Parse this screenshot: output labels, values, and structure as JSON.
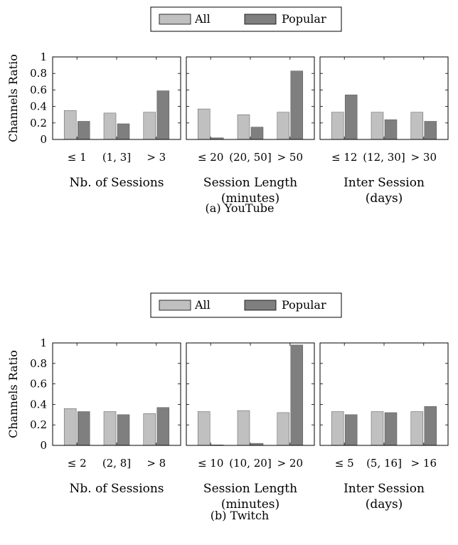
{
  "legend_labels": [
    "All",
    "Popular"
  ],
  "colors": {
    "all": "#c0c0c0",
    "popular": "#7f7f7f",
    "axis": "#000000"
  },
  "chart_data": [
    {
      "type": "bar",
      "caption": "(a) YouTube",
      "ylabel": "Channels Ratio",
      "ylim": [
        0,
        1
      ],
      "yticks": [
        "0",
        "0.2",
        "0.4",
        "0.6",
        "0.8",
        "1"
      ],
      "legend": [
        "All",
        "Popular"
      ],
      "legend_position": "top-center",
      "panels": [
        {
          "xlabel": [
            "Nb. of Sessions"
          ],
          "categories": [
            "≤ 1",
            "(1, 3]",
            "> 3"
          ],
          "series": [
            {
              "name": "All",
              "values": [
                0.35,
                0.32,
                0.33
              ]
            },
            {
              "name": "Popular",
              "values": [
                0.22,
                0.19,
                0.59
              ]
            }
          ]
        },
        {
          "xlabel": [
            "Session Length",
            "(minutes)"
          ],
          "categories": [
            "≤ 20",
            "(20, 50]",
            "> 50"
          ],
          "series": [
            {
              "name": "All",
              "values": [
                0.37,
                0.3,
                0.33
              ]
            },
            {
              "name": "Popular",
              "values": [
                0.02,
                0.15,
                0.83
              ]
            }
          ]
        },
        {
          "xlabel": [
            "Inter Session",
            "(days)"
          ],
          "categories": [
            "≤ 12",
            "(12, 30]",
            "> 30"
          ],
          "series": [
            {
              "name": "All",
              "values": [
                0.33,
                0.33,
                0.33
              ]
            },
            {
              "name": "Popular",
              "values": [
                0.54,
                0.24,
                0.22
              ]
            }
          ]
        }
      ]
    },
    {
      "type": "bar",
      "caption": "(b) Twitch",
      "ylabel": "Channels Ratio",
      "ylim": [
        0,
        1
      ],
      "yticks": [
        "0",
        "0.2",
        "0.4",
        "0.6",
        "0.8",
        "1"
      ],
      "legend": [
        "All",
        "Popular"
      ],
      "legend_position": "top-center",
      "panels": [
        {
          "xlabel": [
            "Nb. of Sessions"
          ],
          "categories": [
            "≤ 2",
            "(2, 8]",
            "> 8"
          ],
          "series": [
            {
              "name": "All",
              "values": [
                0.36,
                0.33,
                0.31
              ]
            },
            {
              "name": "Popular",
              "values": [
                0.33,
                0.3,
                0.37
              ]
            }
          ]
        },
        {
          "xlabel": [
            "Session Length",
            "(minutes)"
          ],
          "categories": [
            "≤ 10",
            "(10, 20]",
            "> 20"
          ],
          "series": [
            {
              "name": "All",
              "values": [
                0.33,
                0.34,
                0.32
              ]
            },
            {
              "name": "Popular",
              "values": [
                0.005,
                0.02,
                0.98
              ]
            }
          ]
        },
        {
          "xlabel": [
            "Inter Session",
            "(days)"
          ],
          "categories": [
            "≤ 5",
            "(5, 16]",
            "> 16"
          ],
          "series": [
            {
              "name": "All",
              "values": [
                0.33,
                0.33,
                0.33
              ]
            },
            {
              "name": "Popular",
              "values": [
                0.3,
                0.32,
                0.38
              ]
            }
          ]
        }
      ]
    }
  ]
}
